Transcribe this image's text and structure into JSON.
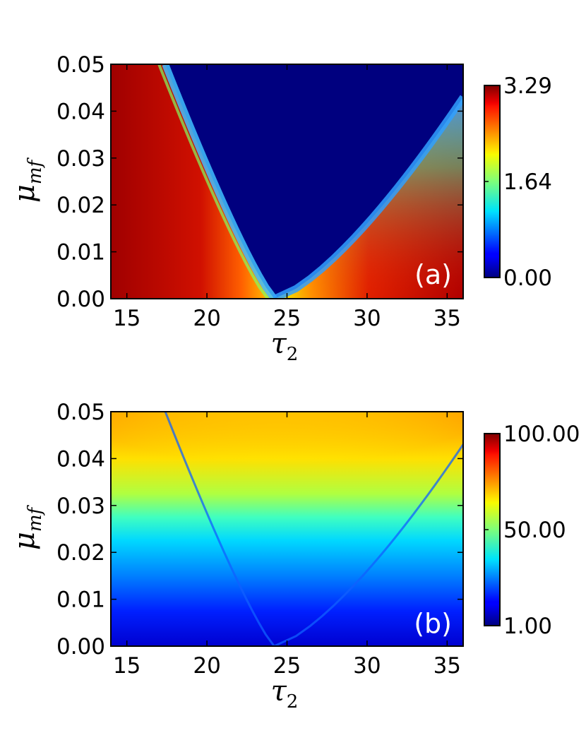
{
  "chart_data": [
    {
      "type": "heatmap",
      "panel_label": "(a)",
      "xlabel": {
        "base": "τ",
        "sub": "2"
      },
      "ylabel": {
        "base": "μ",
        "sub": "mf"
      },
      "xlim": [
        14,
        36
      ],
      "ylim": [
        0.0,
        0.05
      ],
      "x_ticks": [
        "15",
        "20",
        "25",
        "30",
        "35"
      ],
      "y_ticks": [
        "0.00",
        "0.01",
        "0.02",
        "0.03",
        "0.04",
        "0.05"
      ],
      "colorbar": {
        "min": 0.0,
        "max": 3.29,
        "ticks": [
          "0.00",
          "1.64",
          "3.29"
        ],
        "colormap": "jet"
      },
      "description_values": {
        "zero_region_vertex_x": 24.2,
        "zero_region_left_edge_at_top_x": 17.4,
        "zero_region_right_edge_at_y_0.043_x": 36
      }
    },
    {
      "type": "heatmap",
      "panel_label": "(b)",
      "xlabel": {
        "base": "τ",
        "sub": "2"
      },
      "ylabel": {
        "base": "μ",
        "sub": "mf"
      },
      "xlim": [
        14,
        36
      ],
      "ylim": [
        0.0,
        0.05
      ],
      "x_ticks": [
        "15",
        "20",
        "25",
        "30",
        "35"
      ],
      "y_ticks": [
        "0.00",
        "0.01",
        "0.02",
        "0.03",
        "0.04",
        "0.05"
      ],
      "colorbar": {
        "min": 1.0,
        "max": 100.0,
        "ticks": [
          "1.00",
          "50.00",
          "100.00"
        ],
        "colormap": "jet"
      }
    }
  ]
}
